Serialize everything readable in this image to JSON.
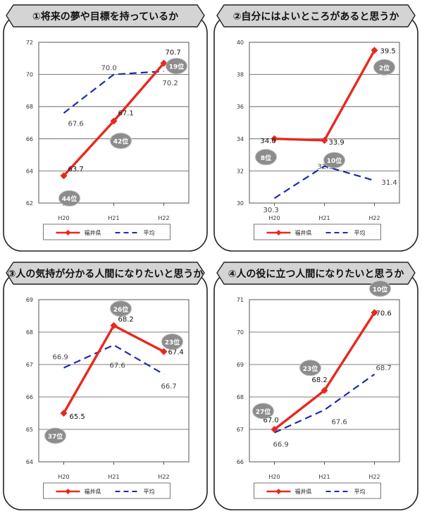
{
  "colors": {
    "fukui": "#e8281e",
    "average": "#1e2ab4",
    "banner": "#d4d4d4",
    "badge": "#8c8c8c",
    "grid": "#555555",
    "frame": "#222222"
  },
  "legend": {
    "fukui": "福井県",
    "average": "平均"
  },
  "chart_data": [
    {
      "type": "line",
      "title": "①将来の夢や目標を持っているか",
      "categories": [
        "H20",
        "H21",
        "H22"
      ],
      "ylim": [
        62,
        72
      ],
      "yticks": [
        62,
        64,
        66,
        68,
        70,
        72
      ],
      "grid": true,
      "legend_position": "bottom",
      "series": [
        {
          "name": "福井県",
          "values": [
            63.7,
            67.1,
            70.7
          ],
          "value_labels": [
            "63.7",
            "67.1",
            "70.7"
          ],
          "ranks": [
            "44位",
            "42位",
            "19位"
          ]
        },
        {
          "name": "平均",
          "values": [
            67.6,
            70.0,
            70.2
          ],
          "value_labels": [
            "67.6",
            "70.0",
            "70.2"
          ]
        }
      ]
    },
    {
      "type": "line",
      "title": "②自分にはよいところがあると思うか",
      "categories": [
        "H20",
        "H21",
        "H22"
      ],
      "ylim": [
        30,
        40
      ],
      "yticks": [
        30,
        32,
        34,
        36,
        38,
        40
      ],
      "grid": true,
      "legend_position": "bottom",
      "series": [
        {
          "name": "福井県",
          "values": [
            34.0,
            33.9,
            39.5
          ],
          "value_labels": [
            "34.0",
            "33.9",
            "39.5"
          ],
          "ranks": [
            "8位",
            "10位",
            "2位"
          ]
        },
        {
          "name": "平均",
          "values": [
            30.3,
            32.3,
            31.4
          ],
          "value_labels": [
            "30.3",
            "32.3",
            "31.4"
          ]
        }
      ]
    },
    {
      "type": "line",
      "title": "③人の気持が分かる人間になりたいと思うか",
      "categories": [
        "H20",
        "H21",
        "H22"
      ],
      "ylim": [
        64,
        69
      ],
      "yticks": [
        64,
        65,
        66,
        67,
        68,
        69
      ],
      "grid": true,
      "legend_position": "bottom",
      "series": [
        {
          "name": "福井県",
          "values": [
            65.5,
            68.2,
            67.4
          ],
          "value_labels": [
            "65.5",
            "68.2",
            "67.4"
          ],
          "ranks": [
            "37位",
            "26位",
            "23位"
          ]
        },
        {
          "name": "平均",
          "values": [
            66.9,
            67.6,
            66.7
          ],
          "value_labels": [
            "66.9",
            "67.6",
            "66.7"
          ]
        }
      ]
    },
    {
      "type": "line",
      "title": "④人の役に立つ人間になりたいと思うか",
      "categories": [
        "H20",
        "H21",
        "H22"
      ],
      "ylim": [
        66,
        71
      ],
      "yticks": [
        66,
        67,
        68,
        69,
        70,
        71
      ],
      "grid": true,
      "legend_position": "bottom",
      "series": [
        {
          "name": "福井県",
          "values": [
            67.0,
            68.2,
            70.6
          ],
          "value_labels": [
            "67.0",
            "68.2",
            "70.6"
          ],
          "ranks": [
            "27位",
            "23位",
            "10位"
          ]
        },
        {
          "name": "平均",
          "values": [
            66.9,
            67.6,
            68.7
          ],
          "value_labels": [
            "66.9",
            "67.6",
            "68.7"
          ]
        }
      ]
    }
  ]
}
